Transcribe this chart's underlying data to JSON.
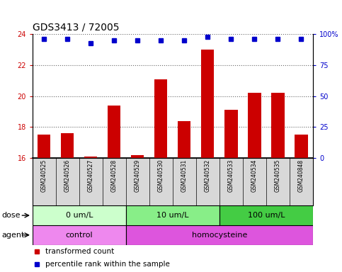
{
  "title": "GDS3413 / 72005",
  "samples": [
    "GSM240525",
    "GSM240526",
    "GSM240527",
    "GSM240528",
    "GSM240529",
    "GSM240530",
    "GSM240531",
    "GSM240532",
    "GSM240533",
    "GSM240534",
    "GSM240535",
    "GSM240848"
  ],
  "transformed_count": [
    17.5,
    17.6,
    16.1,
    19.4,
    16.2,
    21.1,
    18.4,
    23.0,
    19.1,
    20.2,
    20.2,
    17.5
  ],
  "percentile_rank": [
    96,
    96,
    93,
    95,
    95,
    95,
    95,
    98,
    96,
    96,
    96,
    96
  ],
  "ylim_left": [
    16,
    24
  ],
  "ylim_right": [
    0,
    100
  ],
  "yticks_left": [
    16,
    18,
    20,
    22,
    24
  ],
  "yticks_right": [
    0,
    25,
    50,
    75,
    100
  ],
  "bar_color": "#cc0000",
  "dot_color": "#0000cc",
  "chart_bg": "#ffffff",
  "label_bg": "#d8d8d8",
  "dose_groups": [
    {
      "label": "0 um/L",
      "start": 0,
      "end": 4,
      "color": "#ccffcc"
    },
    {
      "label": "10 um/L",
      "start": 4,
      "end": 8,
      "color": "#88ee88"
    },
    {
      "label": "100 um/L",
      "start": 8,
      "end": 12,
      "color": "#44cc44"
    }
  ],
  "agent_groups": [
    {
      "label": "control",
      "start": 0,
      "end": 4,
      "color": "#ee88ee"
    },
    {
      "label": "homocysteine",
      "start": 4,
      "end": 12,
      "color": "#dd55dd"
    }
  ],
  "dose_label": "dose",
  "agent_label": "agent",
  "legend_bar": "transformed count",
  "legend_dot": "percentile rank within the sample",
  "title_fontsize": 10,
  "tick_fontsize": 7,
  "sample_fontsize": 5.5,
  "label_fontsize": 8,
  "legend_fontsize": 7.5
}
